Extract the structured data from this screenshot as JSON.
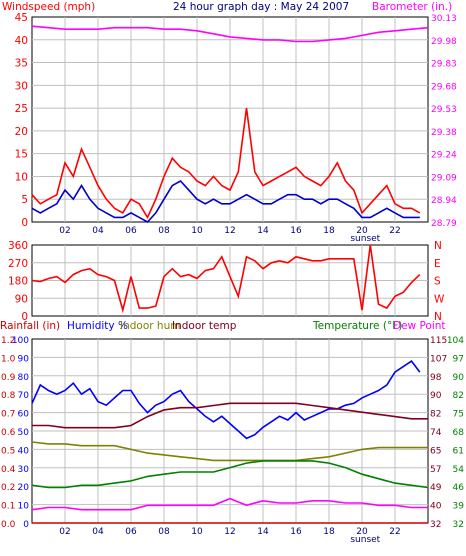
{
  "header": {
    "title": "24 hour graph day : May 24 2007",
    "left_label": "Windspeed (mph)",
    "right_label": "Barometer (in.)"
  },
  "bottom_header": {
    "rainfall": "Rainfall (in)",
    "humidity": "Humidity %",
    "indoor_hum": "Indoor hum",
    "indoor_temp": "Indoor temp",
    "temperature": "Temperature (°F)",
    "dew_point": "Dew Point"
  },
  "sunset_label": "sunset",
  "colors": {
    "wind_gust": "#ff0000",
    "wind_avg": "#0000cc",
    "barometer": "#ff00ff",
    "direction": "#ff0000",
    "humidity": "#0000ff",
    "indoor_hum": "#808000",
    "indoor_temp": "#800020",
    "temperature": "#008000",
    "dew_point": "#ff00ff",
    "rainfall": "#cc0000",
    "grid": "#c0c0c0",
    "frame": "#000000"
  },
  "chart_data": [
    {
      "type": "line",
      "title": "24 hour graph day : May 24 2007",
      "ylabel": "Windspeed (mph)",
      "y2label": "Barometer (in.)",
      "ylim": [
        0,
        45
      ],
      "y2lim": [
        28.79,
        30.13
      ],
      "x_tick_labels": [
        "02",
        "04",
        "06",
        "08",
        "10",
        "12",
        "14",
        "16",
        "18",
        "20",
        "22"
      ],
      "y_tick_labels": [
        "0",
        "5",
        "10",
        "15",
        "20",
        "25",
        "30",
        "35",
        "40",
        "45"
      ],
      "y2_tick_labels": [
        "28.79",
        "28.94",
        "29.09",
        "29.24",
        "29.38",
        "29.53",
        "29.68",
        "29.83",
        "29.98",
        "30.13"
      ],
      "grid": true,
      "series": [
        {
          "name": "Windspeed (mph)",
          "color": "#ff0000",
          "x": [
            0,
            0.5,
            1,
            1.5,
            2,
            2.5,
            3,
            3.5,
            4,
            4.5,
            5,
            5.5,
            6,
            6.5,
            7,
            7.5,
            8,
            8.5,
            9,
            9.5,
            10,
            10.5,
            11,
            11.5,
            12,
            12.5,
            13,
            13.5,
            14,
            14.5,
            15,
            15.5,
            16,
            16.5,
            17,
            17.5,
            18,
            18.5,
            19,
            19.5,
            20,
            20.5,
            21,
            21.5,
            22,
            22.5,
            23,
            23.5
          ],
          "values": [
            6,
            4,
            5,
            6,
            13,
            10,
            16,
            12,
            8,
            5,
            3,
            2,
            5,
            4,
            1,
            5,
            10,
            14,
            12,
            11,
            9,
            8,
            10,
            8,
            7,
            11,
            25,
            11,
            8,
            9,
            10,
            11,
            12,
            10,
            9,
            8,
            10,
            13,
            9,
            7,
            2,
            4,
            6,
            8,
            4,
            3,
            3,
            2
          ]
        },
        {
          "name": "Average windspeed",
          "color": "#0000cc",
          "x": [
            0,
            0.5,
            1,
            1.5,
            2,
            2.5,
            3,
            3.5,
            4,
            4.5,
            5,
            5.5,
            6,
            6.5,
            7,
            7.5,
            8,
            8.5,
            9,
            9.5,
            10,
            10.5,
            11,
            11.5,
            12,
            12.5,
            13,
            13.5,
            14,
            14.5,
            15,
            15.5,
            16,
            16.5,
            17,
            17.5,
            18,
            18.5,
            19,
            19.5,
            20,
            20.5,
            21,
            21.5,
            22,
            22.5,
            23,
            23.5
          ],
          "values": [
            3,
            2,
            3,
            4,
            7,
            5,
            8,
            5,
            3,
            2,
            1,
            1,
            2,
            1,
            0,
            2,
            5,
            8,
            9,
            7,
            5,
            4,
            5,
            4,
            4,
            5,
            6,
            5,
            4,
            4,
            5,
            6,
            6,
            5,
            5,
            4,
            5,
            5,
            4,
            3,
            1,
            1,
            2,
            3,
            2,
            1,
            1,
            1
          ]
        },
        {
          "name": "Barometer (in.)",
          "color": "#ff00ff",
          "axis": "right",
          "x": [
            0,
            1,
            2,
            3,
            4,
            5,
            6,
            7,
            8,
            9,
            10,
            11,
            12,
            13,
            14,
            15,
            16,
            17,
            18,
            19,
            20,
            21,
            22,
            23,
            24
          ],
          "values": [
            30.07,
            30.06,
            30.05,
            30.05,
            30.05,
            30.06,
            30.06,
            30.06,
            30.05,
            30.05,
            30.04,
            30.02,
            30.0,
            29.99,
            29.98,
            29.98,
            29.97,
            29.97,
            29.98,
            29.99,
            30.01,
            30.03,
            30.04,
            30.05,
            30.06
          ]
        }
      ]
    },
    {
      "type": "line",
      "ylabel": "Wind direction",
      "ylim": [
        0,
        360
      ],
      "y_tick_labels": [
        "0",
        "90",
        "180",
        "270",
        "360"
      ],
      "y2_tick_labels": [
        "N",
        "W",
        "S",
        "E",
        "N"
      ],
      "grid": true,
      "series": [
        {
          "name": "Wind direction",
          "color": "#ff0000",
          "x": [
            0,
            0.5,
            1,
            1.5,
            2,
            2.5,
            3,
            3.5,
            4,
            4.5,
            5,
            5.5,
            6,
            6.5,
            7,
            7.5,
            8,
            8.5,
            9,
            9.5,
            10,
            10.5,
            11,
            11.5,
            12,
            12.5,
            13,
            13.5,
            14,
            14.5,
            15,
            15.5,
            16,
            16.5,
            17,
            17.5,
            18,
            18.5,
            19,
            19.5,
            20,
            20.5,
            21,
            21.5,
            22,
            22.5,
            23,
            23.5
          ],
          "values": [
            180,
            175,
            190,
            200,
            170,
            210,
            230,
            240,
            210,
            200,
            180,
            30,
            200,
            40,
            40,
            50,
            200,
            240,
            200,
            210,
            190,
            230,
            240,
            300,
            200,
            100,
            300,
            280,
            240,
            270,
            280,
            270,
            300,
            290,
            280,
            280,
            290,
            290,
            290,
            290,
            30,
            360,
            60,
            40,
            100,
            120,
            170,
            210
          ]
        }
      ]
    },
    {
      "type": "line",
      "ylabel": "Rainfall (in)",
      "ylim": [
        0,
        100
      ],
      "y2label": "Temperature (°F)",
      "y2lim": [
        32,
        115
      ],
      "x_tick_labels": [
        "02",
        "04",
        "06",
        "08",
        "10",
        "12",
        "14",
        "16",
        "18",
        "20",
        "22"
      ],
      "y_tick_labels": [
        "0",
        "10",
        "20",
        "30",
        "40",
        "50",
        "60",
        "70",
        "80",
        "90",
        "100"
      ],
      "rain_tick_labels": [
        "0.0",
        "0.1",
        "0.2",
        "0.4",
        "0.5",
        "0.6",
        "0.7",
        "0.8",
        "0.9",
        "1.0",
        "1.2"
      ],
      "y2_tick_labels": [
        "32",
        "40",
        "49",
        "57",
        "65",
        "74",
        "82",
        "90",
        "98",
        "107",
        "115"
      ],
      "temp_tick_labels": [
        "32",
        "39",
        "46",
        "54",
        "61",
        "68",
        "75",
        "82",
        "90",
        "97",
        "104"
      ],
      "grid": true,
      "series": [
        {
          "name": "Humidity %",
          "color": "#0000ff",
          "x": [
            0,
            0.5,
            1,
            1.5,
            2,
            2.5,
            3,
            3.5,
            4,
            4.5,
            5,
            5.5,
            6,
            6.5,
            7,
            7.5,
            8,
            8.5,
            9,
            9.5,
            10,
            10.5,
            11,
            11.5,
            12,
            12.5,
            13,
            13.5,
            14,
            14.5,
            15,
            15.5,
            16,
            16.5,
            17,
            17.5,
            18,
            18.5,
            19,
            19.5,
            20,
            20.5,
            21,
            21.5,
            22,
            22.5,
            23,
            23.5
          ],
          "values": [
            65,
            75,
            72,
            70,
            72,
            76,
            70,
            73,
            66,
            64,
            68,
            72,
            72,
            65,
            60,
            64,
            66,
            70,
            72,
            66,
            62,
            58,
            55,
            58,
            54,
            50,
            46,
            48,
            52,
            55,
            58,
            56,
            60,
            56,
            58,
            60,
            62,
            62,
            64,
            65,
            68,
            70,
            72,
            75,
            82,
            85,
            88,
            82
          ]
        },
        {
          "name": "Indoor hum",
          "color": "#808000",
          "x": [
            0,
            1,
            2,
            3,
            4,
            5,
            6,
            7,
            8,
            9,
            10,
            11,
            12,
            13,
            14,
            15,
            16,
            17,
            18,
            19,
            20,
            21,
            22,
            23,
            24
          ],
          "values": [
            44,
            43,
            43,
            42,
            42,
            42,
            40,
            38,
            37,
            36,
            35,
            34,
            34,
            34,
            34,
            34,
            34,
            35,
            36,
            38,
            40,
            41,
            41,
            41,
            41
          ]
        },
        {
          "name": "Indoor temp",
          "color": "#800020",
          "x": [
            0,
            1,
            2,
            3,
            4,
            5,
            6,
            7,
            8,
            9,
            10,
            11,
            12,
            13,
            14,
            15,
            16,
            17,
            18,
            19,
            20,
            21,
            22,
            23,
            24
          ],
          "values": [
            76,
            76,
            75,
            75,
            75,
            75,
            76,
            80,
            83,
            84,
            84,
            85,
            86,
            86,
            86,
            86,
            86,
            85,
            84,
            83,
            82,
            81,
            80,
            79,
            79
          ]
        },
        {
          "name": "Temperature (°F)",
          "color": "#008000",
          "x": [
            0,
            1,
            2,
            3,
            4,
            5,
            6,
            7,
            8,
            9,
            10,
            11,
            12,
            13,
            14,
            15,
            16,
            17,
            18,
            19,
            20,
            21,
            22,
            23,
            24
          ],
          "values": [
            49,
            48,
            48,
            49,
            49,
            50,
            51,
            53,
            54,
            55,
            55,
            55,
            57,
            59,
            60,
            60,
            60,
            60,
            59,
            57,
            54,
            52,
            50,
            49,
            48
          ]
        },
        {
          "name": "Dew Point",
          "color": "#ff00ff",
          "x": [
            0,
            1,
            2,
            3,
            4,
            5,
            6,
            7,
            8,
            9,
            10,
            11,
            12,
            13,
            14,
            15,
            16,
            17,
            18,
            19,
            20,
            21,
            22,
            23,
            24
          ],
          "values": [
            38,
            39,
            39,
            38,
            38,
            38,
            38,
            40,
            40,
            40,
            40,
            40,
            43,
            40,
            42,
            41,
            41,
            42,
            42,
            41,
            41,
            40,
            40,
            39,
            39
          ]
        },
        {
          "name": "Rainfall (in)",
          "color": "#cc0000",
          "axis": "rain",
          "x": [
            0,
            24
          ],
          "values": [
            0,
            0
          ]
        }
      ]
    }
  ]
}
